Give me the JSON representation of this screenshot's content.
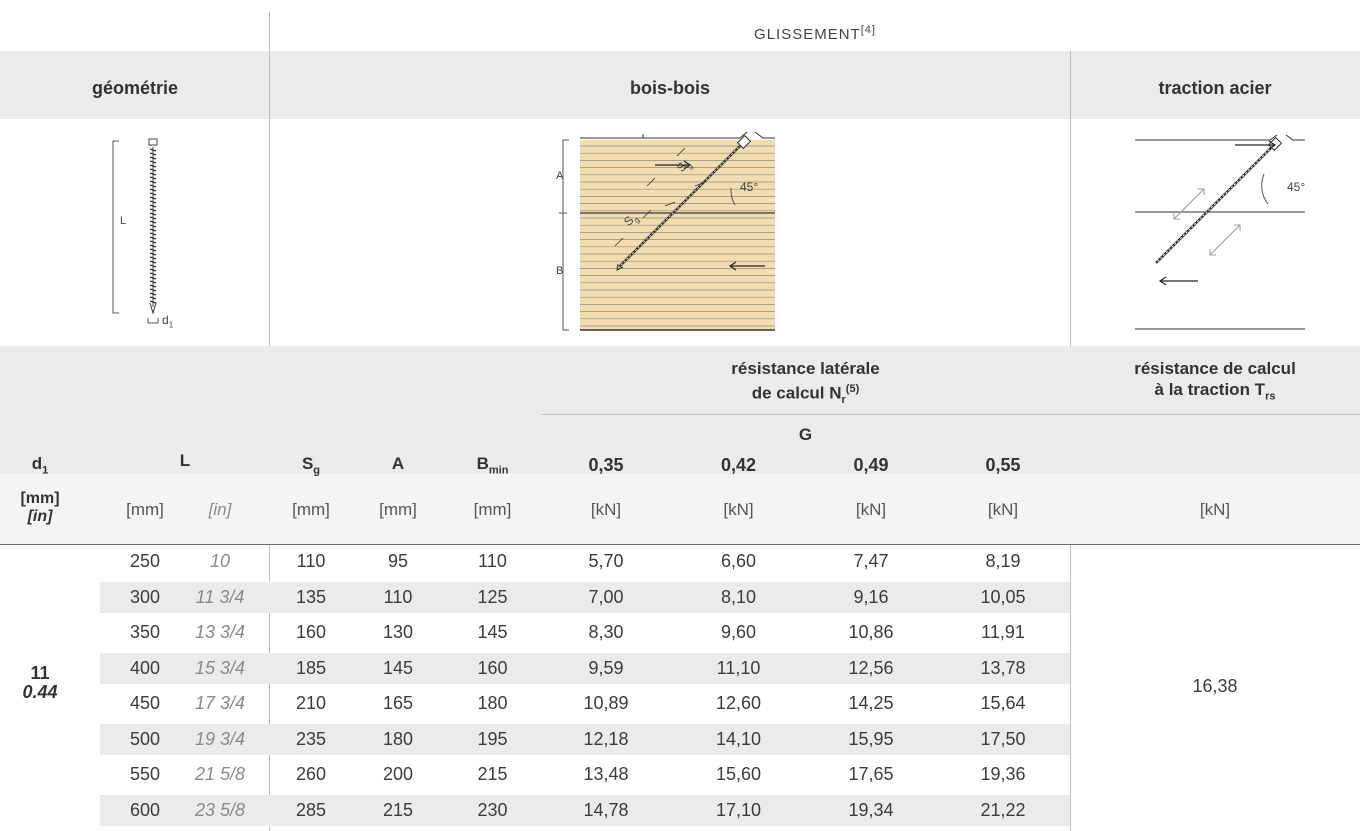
{
  "header": {
    "section_title": "GLISSEMENT",
    "section_note": "[4]",
    "geometry_label": "géométrie",
    "wood_label": "bois-bois",
    "steel_label": "traction acier"
  },
  "diagram": {
    "screw_L": "L",
    "screw_d": "d",
    "screw_d_sub": "1",
    "wood_A": "A",
    "wood_B": "B",
    "sg": "S",
    "sg_sub": "g",
    "angle": "45°",
    "steel_angle": "45°"
  },
  "group_header": {
    "lateral_line1": "résistance latérale",
    "lateral_line2": "de calcul N",
    "lateral_sub": "r",
    "lateral_sup": "(5)",
    "traction_line1": "résistance de calcul",
    "traction_line2": "à la traction T",
    "traction_sub": "rs",
    "G_label": "G"
  },
  "columns": {
    "d1": "d",
    "d1_sub": "1",
    "L": "L",
    "Sg": "S",
    "Sg_sub": "g",
    "A": "A",
    "Bmin": "B",
    "Bmin_sub": "min",
    "g_values": [
      "0,35",
      "0,42",
      "0,49",
      "0,55"
    ]
  },
  "units": {
    "d1_mm": "[mm]",
    "d1_in": "[in]",
    "L_mm": "[mm]",
    "L_in": "[in]",
    "Sg": "[mm]",
    "A": "[mm]",
    "Bmin": "[mm]",
    "kN": [
      "[kN]",
      "[kN]",
      "[kN]",
      "[kN]"
    ],
    "traction": "[kN]"
  },
  "d1_value": {
    "mm": "11",
    "in": "0.44"
  },
  "traction_value": "16,38",
  "rows": [
    {
      "L_mm": "250",
      "L_in": "10",
      "Sg": "110",
      "A": "95",
      "Bmin": "110",
      "v1": "5,70",
      "v2": "6,60",
      "v3": "7,47",
      "v4": "8,19"
    },
    {
      "L_mm": "300",
      "L_in": "11 3/4",
      "Sg": "135",
      "A": "110",
      "Bmin": "125",
      "v1": "7,00",
      "v2": "8,10",
      "v3": "9,16",
      "v4": "10,05"
    },
    {
      "L_mm": "350",
      "L_in": "13 3/4",
      "Sg": "160",
      "A": "130",
      "Bmin": "145",
      "v1": "8,30",
      "v2": "9,60",
      "v3": "10,86",
      "v4": "11,91"
    },
    {
      "L_mm": "400",
      "L_in": "15 3/4",
      "Sg": "185",
      "A": "145",
      "Bmin": "160",
      "v1": "9,59",
      "v2": "11,10",
      "v3": "12,56",
      "v4": "13,78"
    },
    {
      "L_mm": "450",
      "L_in": "17 3/4",
      "Sg": "210",
      "A": "165",
      "Bmin": "180",
      "v1": "10,89",
      "v2": "12,60",
      "v3": "14,25",
      "v4": "15,64"
    },
    {
      "L_mm": "500",
      "L_in": "19 3/4",
      "Sg": "235",
      "A": "180",
      "Bmin": "195",
      "v1": "12,18",
      "v2": "14,10",
      "v3": "15,95",
      "v4": "17,50"
    },
    {
      "L_mm": "550",
      "L_in": "21 5/8",
      "Sg": "260",
      "A": "200",
      "Bmin": "215",
      "v1": "13,48",
      "v2": "15,60",
      "v3": "17,65",
      "v4": "19,36"
    },
    {
      "L_mm": "600",
      "L_in": "23 5/8",
      "Sg": "285",
      "A": "215",
      "Bmin": "230",
      "v1": "14,78",
      "v2": "17,10",
      "v3": "19,34",
      "v4": "21,22"
    }
  ]
}
